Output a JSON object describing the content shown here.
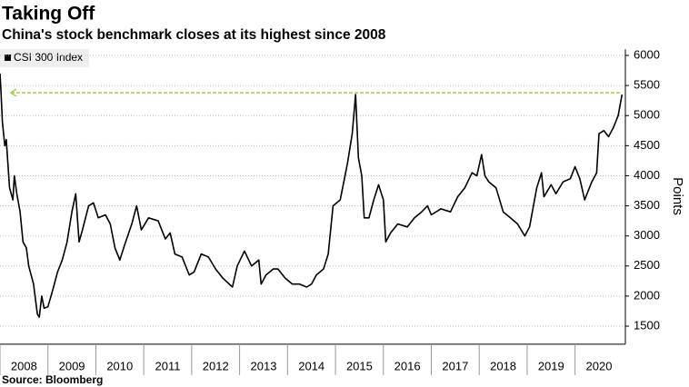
{
  "chart_data": {
    "type": "line",
    "title": "Taking Off",
    "subtitle": "China's stock benchmark closes at its highest since 2008",
    "y_label": "Points",
    "source": "Source: Bloomberg",
    "series": [
      {
        "name": "CSI 300 Index",
        "color": "#000000",
        "x": [
          2008.0,
          2008.02,
          2008.05,
          2008.1,
          2008.13,
          2008.2,
          2008.27,
          2008.3,
          2008.35,
          2008.42,
          2008.48,
          2008.55,
          2008.6,
          2008.7,
          2008.78,
          2008.82,
          2008.87,
          2008.92,
          2009.0,
          2009.1,
          2009.2,
          2009.3,
          2009.4,
          2009.5,
          2009.58,
          2009.65,
          2009.72,
          2009.85,
          2009.95,
          2010.05,
          2010.2,
          2010.3,
          2010.4,
          2010.5,
          2010.6,
          2010.75,
          2010.85,
          2010.95,
          2011.1,
          2011.3,
          2011.45,
          2011.55,
          2011.65,
          2011.8,
          2011.95,
          2012.05,
          2012.2,
          2012.35,
          2012.5,
          2012.65,
          2012.85,
          2012.95,
          2013.1,
          2013.25,
          2013.4,
          2013.45,
          2013.55,
          2013.7,
          2013.8,
          2013.95,
          2014.1,
          2014.25,
          2014.4,
          2014.5,
          2014.6,
          2014.75,
          2014.85,
          2014.95,
          2015.1,
          2015.25,
          2015.35,
          2015.42,
          2015.48,
          2015.55,
          2015.6,
          2015.7,
          2015.8,
          2015.9,
          2016.0,
          2016.05,
          2016.15,
          2016.3,
          2016.5,
          2016.65,
          2016.8,
          2016.92,
          2017.0,
          2017.2,
          2017.4,
          2017.55,
          2017.7,
          2017.85,
          2017.95,
          2018.05,
          2018.12,
          2018.2,
          2018.35,
          2018.5,
          2018.65,
          2018.8,
          2018.95,
          2019.05,
          2019.2,
          2019.3,
          2019.35,
          2019.5,
          2019.6,
          2019.75,
          2019.9,
          2020.0,
          2020.1,
          2020.2,
          2020.35,
          2020.45,
          2020.5,
          2020.6,
          2020.7,
          2020.8,
          2020.9,
          2020.98
        ],
        "values": [
          5700,
          5400,
          4900,
          4500,
          4600,
          3800,
          3600,
          4000,
          3700,
          3400,
          2900,
          2800,
          2500,
          2200,
          1700,
          1650,
          2000,
          1800,
          1820,
          2100,
          2400,
          2600,
          2900,
          3400,
          3700,
          2900,
          3100,
          3500,
          3550,
          3300,
          3350,
          3200,
          2800,
          2600,
          2850,
          3200,
          3500,
          3100,
          3300,
          3250,
          2950,
          3050,
          2700,
          2650,
          2350,
          2400,
          2700,
          2650,
          2450,
          2300,
          2150,
          2500,
          2750,
          2500,
          2600,
          2200,
          2350,
          2450,
          2450,
          2300,
          2200,
          2200,
          2150,
          2200,
          2350,
          2450,
          2700,
          3500,
          3600,
          4200,
          4700,
          5350,
          4300,
          4000,
          3300,
          3300,
          3600,
          3850,
          3600,
          2900,
          3050,
          3200,
          3150,
          3300,
          3400,
          3500,
          3350,
          3450,
          3400,
          3650,
          3800,
          4050,
          4000,
          4350,
          4000,
          3900,
          3800,
          3400,
          3300,
          3200,
          3000,
          3150,
          3800,
          4050,
          3650,
          3850,
          3700,
          3900,
          3950,
          4150,
          3950,
          3600,
          3900,
          4050,
          4700,
          4750,
          4650,
          4800,
          5000,
          5350
        ]
      }
    ],
    "reference_line": {
      "value": 5380,
      "color": "#9acd32"
    },
    "xlim": [
      2008,
      2021.05
    ],
    "xticks": [
      2008,
      2009,
      2010,
      2011,
      2012,
      2013,
      2014,
      2015,
      2016,
      2017,
      2018,
      2019,
      2020
    ],
    "ylim": [
      1200,
      6100
    ],
    "yticks": [
      1500,
      2000,
      2500,
      3000,
      3500,
      4000,
      4500,
      5000,
      5500,
      6000
    ],
    "grid": true
  }
}
